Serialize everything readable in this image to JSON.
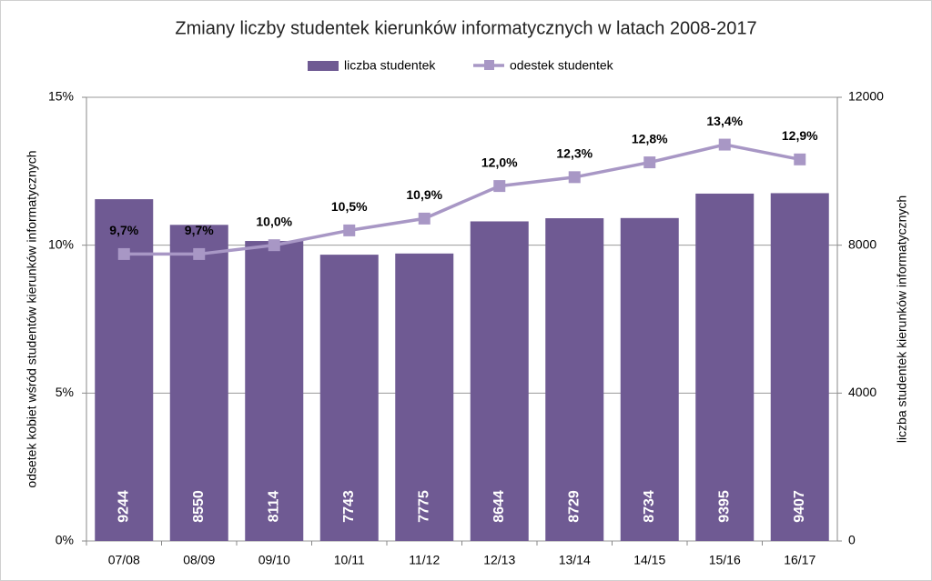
{
  "chart_data": {
    "type": "combo",
    "title": "Zmiany liczby studentek kierunków informatycznych w latach 2008-2017",
    "categories": [
      "07/08",
      "08/09",
      "09/10",
      "10/11",
      "11/12",
      "12/13",
      "13/14",
      "14/15",
      "15/16",
      "16/17"
    ],
    "y_label": "odsetek kobiet wśród studentów kierunków informatycznych",
    "y2_label": "liczba studentek kierunków informatycznych",
    "ylim": [
      0,
      15
    ],
    "yticks": [
      {
        "value": 0,
        "label": "0%"
      },
      {
        "value": 5,
        "label": "5%"
      },
      {
        "value": 10,
        "label": "10%"
      },
      {
        "value": 15,
        "label": "15%"
      }
    ],
    "y2lim": [
      0,
      12000
    ],
    "y2ticks": [
      0,
      4000,
      8000,
      12000
    ],
    "grid": true,
    "legend": "top",
    "series": [
      {
        "name": "liczba studentek",
        "type": "bar",
        "axis": "y2",
        "color": "#6f5a93",
        "values": [
          9244,
          8550,
          8114,
          7743,
          7775,
          8644,
          8729,
          8734,
          9395,
          9407
        ]
      },
      {
        "name": "odestek studentek",
        "type": "line",
        "color": "#a897c5",
        "values": [
          9.7,
          9.7,
          10.0,
          10.5,
          10.9,
          12.0,
          12.3,
          12.8,
          13.4,
          12.9
        ],
        "value_labels": [
          "9,7%",
          "9,7%",
          "10,0%",
          "10,5%",
          "10,9%",
          "12,0%",
          "12,3%",
          "12,8%",
          "13,4%",
          "12,9%"
        ]
      }
    ]
  }
}
